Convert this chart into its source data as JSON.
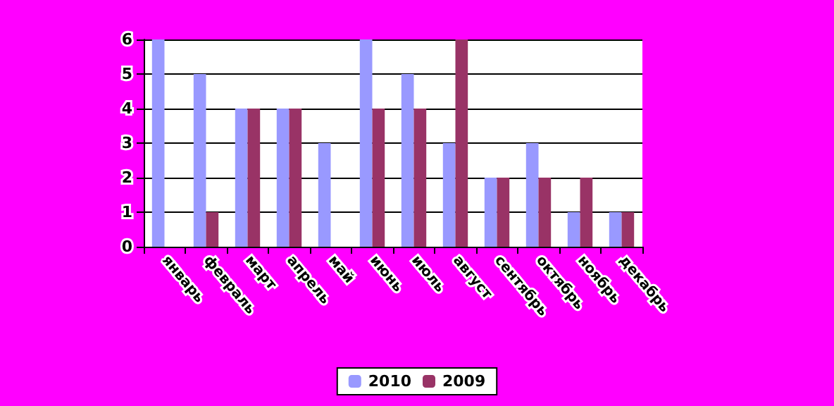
{
  "chart_data": {
    "type": "bar",
    "categories": [
      "январь",
      "февраль",
      "март",
      "апрель",
      "май",
      "июнь",
      "июль",
      "август",
      "сентябрь",
      "октябрь",
      "ноябрь",
      "декабрь"
    ],
    "series": [
      {
        "name": "2010",
        "color": "#9999ff",
        "values": [
          6,
          5,
          4,
          4,
          3,
          6,
          5,
          3,
          2,
          3,
          1,
          1
        ]
      },
      {
        "name": "2009",
        "color": "#993366",
        "values": [
          0,
          1,
          4,
          4,
          0,
          4,
          4,
          6,
          2,
          2,
          2,
          1
        ]
      }
    ],
    "ylim": [
      0,
      6
    ],
    "yticks": [
      0,
      1,
      2,
      3,
      4,
      5,
      6
    ],
    "grid": "y",
    "legend": "bottom"
  }
}
